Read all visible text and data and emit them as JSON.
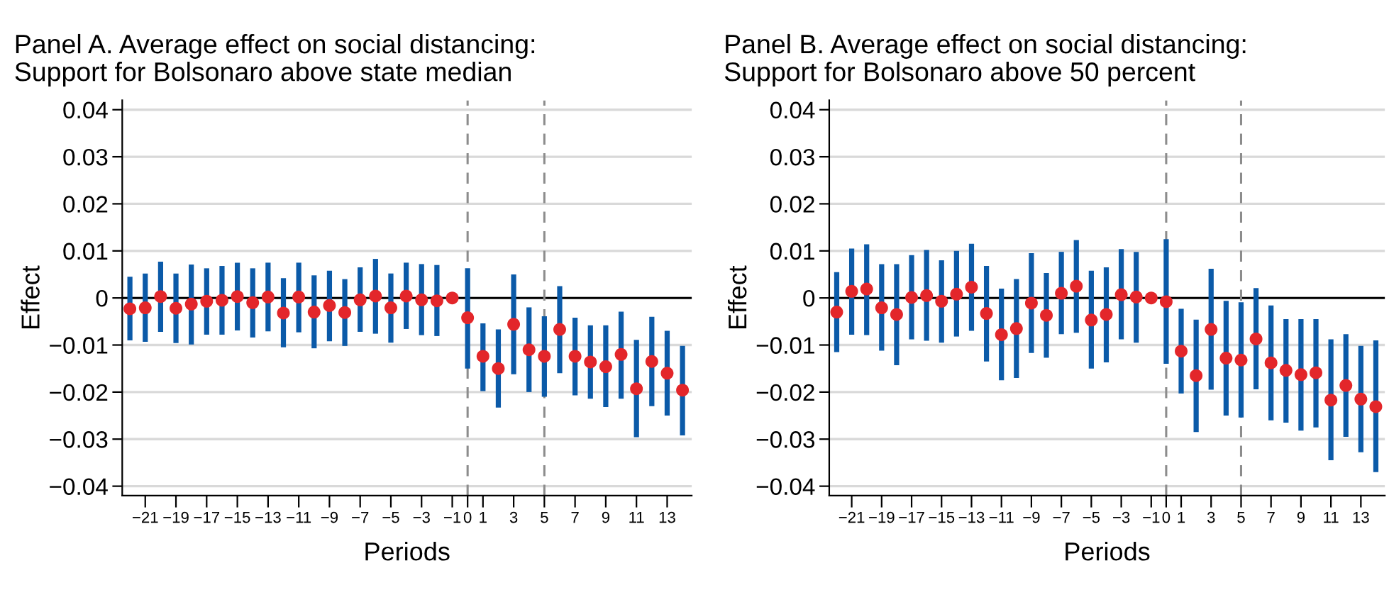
{
  "chart_data": [
    {
      "type": "scatter",
      "title": "Panel A. Average effect on social distancing:\nSupport for Bolsonaro above state median",
      "xlabel": "Periods",
      "ylabel": "Effect",
      "x": [
        -22,
        -21,
        -20,
        -19,
        -18,
        -17,
        -16,
        -15,
        -14,
        -13,
        -12,
        -11,
        -10,
        -9,
        -8,
        -7,
        -6,
        -5,
        -4,
        -3,
        -2,
        -1,
        0,
        1,
        2,
        3,
        4,
        5,
        6,
        7,
        8,
        9,
        10,
        11,
        12,
        13,
        14
      ],
      "series": [
        {
          "color": "#e3262a",
          "values": [
            -0.0023,
            -0.0021,
            0.0003,
            -0.0022,
            -0.0013,
            -0.0007,
            -0.0005,
            0.0003,
            -0.001,
            0.0002,
            -0.0032,
            0.0002,
            -0.003,
            -0.0016,
            -0.0031,
            -0.0004,
            0.0004,
            -0.0021,
            0.0004,
            -0.0004,
            -0.0006,
            0,
            -0.0042,
            -0.0124,
            -0.015,
            -0.0056,
            -0.011,
            -0.0124,
            -0.0067,
            -0.0124,
            -0.0136,
            -0.0146,
            -0.012,
            -0.0193,
            -0.0135,
            -0.016,
            -0.0196
          ],
          "errors": [
            [
              -0.009,
              0.0045
            ],
            [
              -0.0093,
              0.0052
            ],
            [
              -0.0072,
              0.0077
            ],
            [
              -0.0096,
              0.0052
            ],
            [
              -0.0099,
              0.0071
            ],
            [
              -0.0078,
              0.0063
            ],
            [
              -0.0078,
              0.0068
            ],
            [
              -0.0069,
              0.0075
            ],
            [
              -0.0084,
              0.0063
            ],
            [
              -0.0071,
              0.0075
            ],
            [
              -0.0105,
              0.0042
            ],
            [
              -0.0073,
              0.0075
            ],
            [
              -0.0107,
              0.0048
            ],
            [
              -0.0092,
              0.0058
            ],
            [
              -0.0102,
              0.004
            ],
            [
              -0.0072,
              0.0065
            ],
            [
              -0.0076,
              0.0083
            ],
            [
              -0.0095,
              0.0052
            ],
            [
              -0.0066,
              0.0075
            ],
            [
              -0.0079,
              0.0072
            ],
            [
              -0.0081,
              0.007
            ],
            null,
            [
              -0.015,
              0.0063
            ],
            [
              -0.0198,
              -0.0054
            ],
            [
              -0.0233,
              -0.0067
            ],
            [
              -0.0162,
              0.005
            ],
            [
              -0.02,
              -0.002
            ],
            [
              -0.021,
              -0.0039
            ],
            [
              -0.016,
              0.0025
            ],
            [
              -0.0207,
              -0.0042
            ],
            [
              -0.0214,
              -0.0058
            ],
            [
              -0.0232,
              -0.0058
            ],
            [
              -0.0214,
              -0.0029
            ],
            [
              -0.0296,
              -0.0089
            ],
            [
              -0.023,
              -0.004
            ],
            [
              -0.025,
              -0.007
            ],
            [
              -0.0292,
              -0.0102
            ]
          ]
        }
      ],
      "xlim": [
        -22.5,
        14.6
      ],
      "ylim": [
        -0.042,
        0.042
      ],
      "xticks": [
        {
          "value": -21,
          "label": "−21"
        },
        {
          "value": -19,
          "label": "−19"
        },
        {
          "value": -17,
          "label": "−17"
        },
        {
          "value": -15,
          "label": "−15"
        },
        {
          "value": -13,
          "label": "−13"
        },
        {
          "value": -11,
          "label": "−11"
        },
        {
          "value": -9,
          "label": "−9"
        },
        {
          "value": -7,
          "label": "−7"
        },
        {
          "value": -5,
          "label": "−5"
        },
        {
          "value": -3,
          "label": "−3"
        },
        {
          "value": -1,
          "label": "−1"
        },
        0,
        1,
        3,
        5,
        7,
        9,
        11,
        13
      ],
      "yticks": [
        {
          "value": -0.04,
          "label": "−0.04"
        },
        {
          "value": -0.03,
          "label": "−0.03"
        },
        {
          "value": -0.02,
          "label": "−0.02"
        },
        {
          "value": -0.01,
          "label": "−0.01"
        },
        0,
        0.01,
        0.02,
        0.03,
        0.04
      ],
      "ref_lines": [
        {
          "axis": "y",
          "value": 0,
          "color": "#000000",
          "line_style": "solid"
        },
        {
          "axis": "x",
          "value": 0,
          "color": "#8c8c8c",
          "line_style": "dashed"
        },
        {
          "axis": "x",
          "value": 5,
          "color": "#8c8c8c",
          "line_style": "dashed"
        }
      ],
      "grid": "y",
      "marker": "circle"
    },
    {
      "type": "scatter",
      "title": "Panel B. Average effect on social distancing:\nSupport for Bolsonaro above 50 percent",
      "xlabel": "Periods",
      "ylabel": "Effect",
      "x": [
        -22,
        -21,
        -20,
        -19,
        -18,
        -17,
        -16,
        -15,
        -14,
        -13,
        -12,
        -11,
        -10,
        -9,
        -8,
        -7,
        -6,
        -5,
        -4,
        -3,
        -2,
        -1,
        0,
        1,
        2,
        3,
        4,
        5,
        6,
        7,
        8,
        9,
        10,
        11,
        12,
        13,
        14
      ],
      "series": [
        {
          "color": "#e3262a",
          "values": [
            -0.003,
            0.0014,
            0.0019,
            -0.0021,
            -0.0035,
            0.0001,
            0.0005,
            -0.0007,
            0.0008,
            0.0023,
            -0.0033,
            -0.0078,
            -0.0065,
            -0.0011,
            -0.0037,
            0.001,
            0.0025,
            -0.0047,
            -0.0035,
            0.0007,
            0.0002,
            0,
            -0.0008,
            -0.0113,
            -0.0165,
            -0.0067,
            -0.0128,
            -0.0132,
            -0.0087,
            -0.0138,
            -0.0154,
            -0.0163,
            -0.0159,
            -0.0217,
            -0.0186,
            -0.0215,
            -0.0231
          ],
          "errors": [
            [
              -0.0115,
              0.0055
            ],
            [
              -0.0078,
              0.0105
            ],
            [
              -0.0079,
              0.0114
            ],
            [
              -0.0112,
              0.0072
            ],
            [
              -0.0143,
              0.0072
            ],
            [
              -0.0088,
              0.0091
            ],
            [
              -0.0091,
              0.0102
            ],
            [
              -0.0095,
              0.008
            ],
            [
              -0.0082,
              0.01
            ],
            [
              -0.007,
              0.0115
            ],
            [
              -0.0135,
              0.0068
            ],
            [
              -0.0175,
              0.002
            ],
            [
              -0.017,
              0.004
            ],
            [
              -0.0117,
              0.0095
            ],
            [
              -0.0127,
              0.0053
            ],
            [
              -0.0077,
              0.0098
            ],
            [
              -0.0074,
              0.0123
            ],
            [
              -0.015,
              0.0058
            ],
            [
              -0.0137,
              0.0065
            ],
            [
              -0.0088,
              0.0104
            ],
            [
              -0.0095,
              0.0098
            ],
            null,
            [
              -0.014,
              0.0125
            ],
            [
              -0.0203,
              -0.0023
            ],
            [
              -0.0285,
              -0.0046
            ],
            [
              -0.0195,
              0.0062
            ],
            [
              -0.025,
              -0.0006
            ],
            [
              -0.0254,
              -0.0009
            ],
            [
              -0.0194,
              0.0021
            ],
            [
              -0.026,
              -0.0016
            ],
            [
              -0.0265,
              -0.0045
            ],
            [
              -0.0282,
              -0.0045
            ],
            [
              -0.0275,
              -0.0045
            ],
            [
              -0.0345,
              -0.0088
            ],
            [
              -0.0295,
              -0.0077
            ],
            [
              -0.0328,
              -0.0102
            ],
            [
              -0.037,
              -0.009
            ]
          ]
        }
      ],
      "xlim": [
        -22.5,
        14.6
      ],
      "ylim": [
        -0.042,
        0.042
      ],
      "xticks": [
        {
          "value": -21,
          "label": "−21"
        },
        {
          "value": -19,
          "label": "−19"
        },
        {
          "value": -17,
          "label": "−17"
        },
        {
          "value": -15,
          "label": "−15"
        },
        {
          "value": -13,
          "label": "−13"
        },
        {
          "value": -11,
          "label": "−11"
        },
        {
          "value": -9,
          "label": "−9"
        },
        {
          "value": -7,
          "label": "−7"
        },
        {
          "value": -5,
          "label": "−5"
        },
        {
          "value": -3,
          "label": "−3"
        },
        {
          "value": -1,
          "label": "−1"
        },
        0,
        1,
        3,
        5,
        7,
        9,
        11,
        13
      ],
      "yticks": [
        {
          "value": -0.04,
          "label": "−0.04"
        },
        {
          "value": -0.03,
          "label": "−0.03"
        },
        {
          "value": -0.02,
          "label": "−0.02"
        },
        {
          "value": -0.01,
          "label": "−0.01"
        },
        0,
        0.01,
        0.02,
        0.03,
        0.04
      ],
      "ref_lines": [
        {
          "axis": "y",
          "value": 0,
          "color": "#000000",
          "line_style": "solid"
        },
        {
          "axis": "x",
          "value": 0,
          "color": "#8c8c8c",
          "line_style": "dashed"
        },
        {
          "axis": "x",
          "value": 5,
          "color": "#8c8c8c",
          "line_style": "dashed"
        }
      ],
      "grid": "y",
      "marker": "circle"
    }
  ]
}
